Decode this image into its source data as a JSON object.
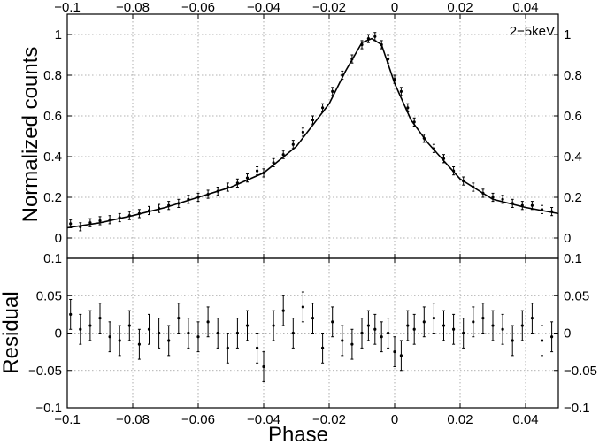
{
  "chart_data": [
    {
      "type": "line",
      "panel": "upper",
      "ylabel": "Normalized counts",
      "annotation": "2−5keV",
      "xlim": [
        -0.1,
        0.05
      ],
      "ylim": [
        -0.1,
        1.1
      ],
      "xticks": [
        -0.1,
        -0.08,
        -0.06,
        -0.04,
        -0.02,
        0,
        0.02,
        0.04
      ],
      "xtick_labels": [
        "−0.1",
        "−0.08",
        "−0.06",
        "−0.04",
        "−0.02",
        "0",
        "0.02",
        "0.04"
      ],
      "yticks": [
        0,
        0.2,
        0.4,
        0.6,
        0.8,
        1
      ],
      "ytick_labels": [
        "0",
        "0.2",
        "0.4",
        "0.6",
        "0.8",
        "1"
      ],
      "grid": true,
      "model_curve": {
        "x": [
          -0.1,
          -0.09,
          -0.08,
          -0.07,
          -0.06,
          -0.05,
          -0.04,
          -0.03,
          -0.02,
          -0.015,
          -0.01,
          -0.007,
          -0.004,
          0,
          0.005,
          0.01,
          0.015,
          0.02,
          0.03,
          0.04,
          0.05
        ],
        "y": [
          0.05,
          0.075,
          0.11,
          0.15,
          0.2,
          0.25,
          0.32,
          0.45,
          0.66,
          0.82,
          0.96,
          0.98,
          0.95,
          0.76,
          0.58,
          0.47,
          0.38,
          0.29,
          0.19,
          0.15,
          0.12
        ]
      },
      "data_points": {
        "x": [
          -0.099,
          -0.096,
          -0.093,
          -0.09,
          -0.087,
          -0.084,
          -0.081,
          -0.078,
          -0.075,
          -0.072,
          -0.069,
          -0.066,
          -0.063,
          -0.06,
          -0.057,
          -0.054,
          -0.051,
          -0.048,
          -0.045,
          -0.042,
          -0.04,
          -0.037,
          -0.034,
          -0.031,
          -0.028,
          -0.025,
          -0.022,
          -0.019,
          -0.016,
          -0.013,
          -0.01,
          -0.008,
          -0.006,
          -0.004,
          -0.002,
          0.0,
          0.002,
          0.004,
          0.006,
          0.009,
          0.012,
          0.015,
          0.018,
          0.021,
          0.024,
          0.027,
          0.03,
          0.033,
          0.036,
          0.039,
          0.042,
          0.045,
          0.048
        ],
        "y": [
          0.07,
          0.055,
          0.075,
          0.085,
          0.09,
          0.1,
          0.11,
          0.12,
          0.135,
          0.145,
          0.16,
          0.17,
          0.19,
          0.2,
          0.215,
          0.23,
          0.25,
          0.27,
          0.295,
          0.33,
          0.32,
          0.37,
          0.41,
          0.46,
          0.52,
          0.58,
          0.64,
          0.72,
          0.8,
          0.88,
          0.95,
          0.98,
          0.99,
          0.95,
          0.88,
          0.78,
          0.72,
          0.64,
          0.57,
          0.49,
          0.44,
          0.39,
          0.33,
          0.28,
          0.25,
          0.22,
          0.2,
          0.19,
          0.17,
          0.16,
          0.16,
          0.14,
          0.13
        ],
        "err": 0.02
      }
    },
    {
      "type": "scatter",
      "panel": "lower",
      "xlabel": "Phase",
      "ylabel": "Residual",
      "xlim": [
        -0.1,
        0.05
      ],
      "ylim": [
        -0.1,
        0.1
      ],
      "xticks": [
        -0.1,
        -0.08,
        -0.06,
        -0.04,
        -0.02,
        0,
        0.02,
        0.04
      ],
      "xtick_labels": [
        "−0.1",
        "−0.08",
        "−0.06",
        "−0.04",
        "−0.02",
        "0",
        "0.02",
        "0.04"
      ],
      "yticks": [
        -0.1,
        -0.05,
        0,
        0.05,
        0.1
      ],
      "ytick_labels": [
        "−0.1",
        "−0.05",
        "0",
        "0.05",
        "0.1"
      ],
      "grid": true,
      "data_points": {
        "x": [
          -0.099,
          -0.096,
          -0.093,
          -0.09,
          -0.087,
          -0.084,
          -0.081,
          -0.078,
          -0.075,
          -0.072,
          -0.069,
          -0.066,
          -0.063,
          -0.06,
          -0.057,
          -0.054,
          -0.051,
          -0.048,
          -0.045,
          -0.042,
          -0.04,
          -0.037,
          -0.034,
          -0.031,
          -0.028,
          -0.025,
          -0.022,
          -0.019,
          -0.016,
          -0.013,
          -0.01,
          -0.008,
          -0.006,
          -0.004,
          -0.002,
          0.0,
          0.002,
          0.004,
          0.006,
          0.009,
          0.012,
          0.015,
          0.018,
          0.021,
          0.024,
          0.027,
          0.03,
          0.033,
          0.036,
          0.039,
          0.042,
          0.045,
          0.048
        ],
        "y": [
          0.025,
          0.005,
          0.01,
          0.02,
          -0.005,
          -0.01,
          0.01,
          -0.015,
          0.005,
          0.0,
          -0.01,
          0.02,
          0.0,
          -0.005,
          0.015,
          0.0,
          -0.02,
          0.0,
          0.01,
          -0.02,
          -0.045,
          0.01,
          0.03,
          0.0,
          0.035,
          0.02,
          -0.02,
          0.015,
          -0.01,
          -0.015,
          0.0,
          0.01,
          0.005,
          -0.005,
          0.0,
          -0.025,
          -0.03,
          0.01,
          0.005,
          0.015,
          0.02,
          0.01,
          0.005,
          0.0,
          0.015,
          0.02,
          0.01,
          0.005,
          -0.01,
          0.01,
          0.02,
          -0.01,
          -0.005
        ],
        "err": 0.02
      }
    }
  ]
}
